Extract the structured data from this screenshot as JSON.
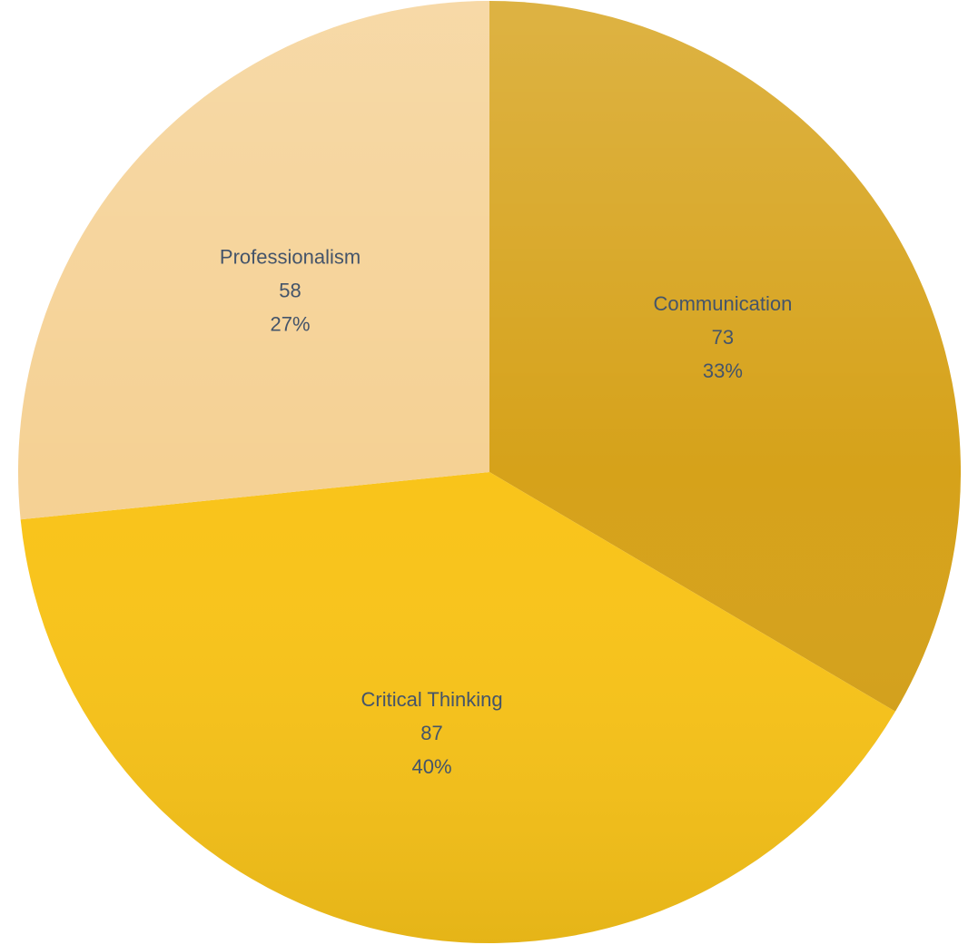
{
  "chart_data": {
    "type": "pie",
    "categories": [
      "Communication",
      "Critical Thinking",
      "Professionalism"
    ],
    "values": [
      73,
      87,
      58
    ],
    "percent_labels": [
      "33%",
      "40%",
      "27%"
    ],
    "colors": [
      "#d6a21a",
      "#f9c41a",
      "#f5d194"
    ]
  }
}
